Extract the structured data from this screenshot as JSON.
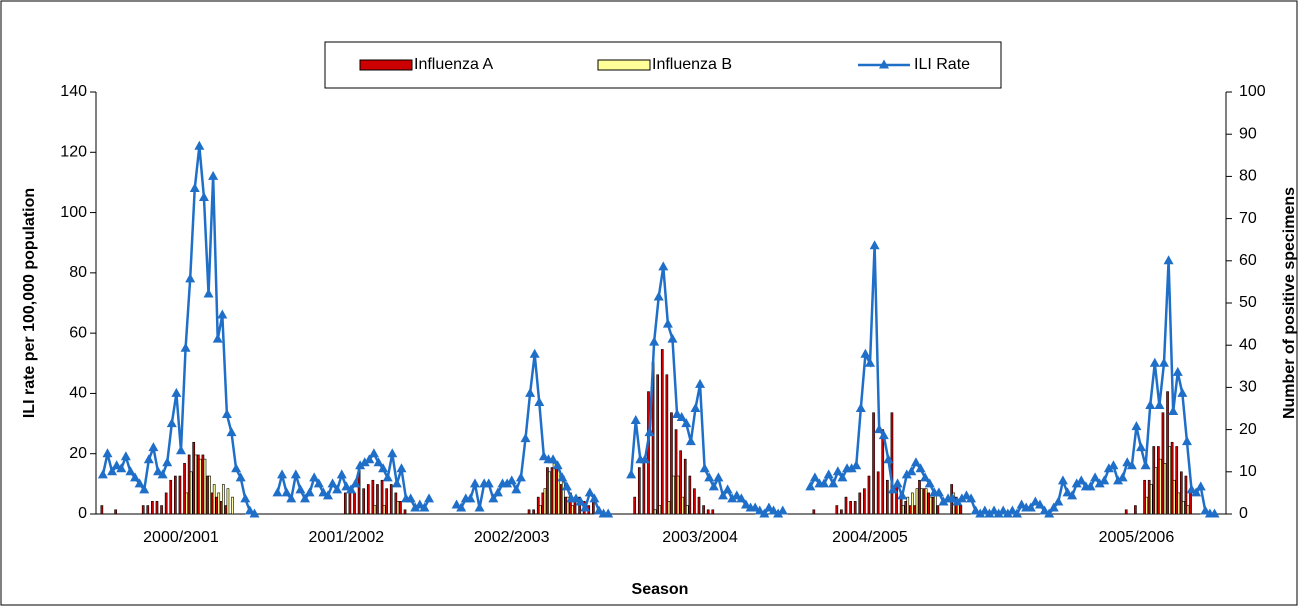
{
  "chart_data": {
    "type": "combo",
    "x_label": "Season",
    "y_label": "ILI rate per 100,000 population",
    "y2_label": "Number of positive specimens",
    "ylim": [
      0,
      140
    ],
    "yticks": [
      0,
      20,
      40,
      60,
      80,
      100,
      120,
      140
    ],
    "y2lim": [
      0,
      100
    ],
    "y2ticks": [
      0,
      10,
      20,
      30,
      40,
      50,
      60,
      70,
      80,
      90,
      100
    ],
    "legend": "top",
    "categories": [
      null,
      null,
      null,
      null,
      null,
      null,
      null,
      null,
      null,
      null,
      null,
      null,
      null,
      null,
      null,
      null,
      null,
      null,
      "2000/2001",
      null,
      null,
      null,
      null,
      null,
      null,
      null,
      null,
      null,
      null,
      null,
      null,
      null,
      null,
      null,
      null,
      null,
      null,
      null,
      null,
      null,
      null,
      null,
      null,
      null,
      null,
      null,
      null,
      null,
      null,
      null,
      null,
      null,
      null,
      null,
      "2001/2002",
      null,
      null,
      null,
      null,
      null,
      null,
      null,
      null,
      null,
      null,
      null,
      null,
      null,
      null,
      null,
      null,
      null,
      null,
      null,
      null,
      null,
      null,
      null,
      null,
      null,
      null,
      null,
      null,
      null,
      null,
      null,
      null,
      null,
      null,
      null,
      "2002/2003",
      null,
      null,
      null,
      null,
      null,
      null,
      null,
      null,
      null,
      null,
      null,
      null,
      null,
      null,
      null,
      null,
      null,
      null,
      null,
      null,
      null,
      null,
      null,
      null,
      null,
      null,
      null,
      null,
      null,
      null,
      null,
      null,
      null,
      null,
      null,
      null,
      null,
      null,
      null,
      null,
      "2003/2004",
      null,
      null,
      null,
      null,
      null,
      null,
      null,
      null,
      null,
      null,
      null,
      null,
      null,
      null,
      null,
      null,
      null,
      null,
      null,
      null,
      null,
      null,
      null,
      null,
      null,
      null,
      null,
      null,
      null,
      null,
      null,
      null,
      null,
      null,
      null,
      null,
      "2004/2005",
      null,
      null,
      null,
      null,
      null,
      null,
      null,
      null,
      null,
      null,
      null,
      null,
      null,
      null,
      null,
      null,
      null,
      null,
      null,
      null,
      null,
      null,
      null,
      null,
      null,
      null,
      null,
      null,
      null,
      null,
      null,
      null,
      null,
      null,
      null,
      null,
      null,
      null,
      null,
      null,
      null,
      null,
      null,
      null,
      null,
      null,
      null,
      null,
      null,
      null,
      null,
      null,
      null,
      null,
      null,
      null,
      null,
      "2005/2006",
      null,
      null,
      null,
      null,
      null,
      null,
      null,
      null,
      null,
      null,
      null,
      null,
      null,
      null,
      null,
      null,
      null,
      null,
      null
    ],
    "series": [
      {
        "name": "Influenza A",
        "type": "bar",
        "axis": "y2",
        "color": "#cc0000",
        "values": [
          0,
          2,
          0,
          0,
          1,
          0,
          0,
          0,
          0,
          0,
          2,
          2,
          3,
          3,
          2,
          5,
          8,
          9,
          9,
          12,
          14,
          17,
          14,
          14,
          9,
          5,
          4,
          3,
          2,
          0,
          0,
          0,
          0,
          0,
          0,
          0,
          0,
          0,
          0,
          0,
          0,
          0,
          0,
          0,
          0,
          0,
          0,
          0,
          0,
          0,
          0,
          0,
          0,
          0,
          5,
          6,
          5,
          11,
          6,
          7,
          8,
          7,
          8,
          6,
          7,
          5,
          3,
          1,
          0,
          0,
          0,
          0,
          0,
          0,
          0,
          0,
          0,
          0,
          0,
          0,
          0,
          0,
          0,
          0,
          0,
          0,
          0,
          0,
          0,
          0,
          0,
          0,
          0,
          0,
          1,
          1,
          4,
          5,
          11,
          11,
          11,
          7,
          4,
          5,
          3,
          4,
          3,
          2,
          3,
          1,
          0,
          0,
          0,
          0,
          0,
          0,
          0,
          4,
          11,
          13,
          29,
          36,
          33,
          39,
          33,
          24,
          20,
          15,
          13,
          9,
          6,
          4,
          2,
          1,
          1,
          0,
          0,
          0,
          0,
          0,
          0,
          0,
          0,
          0,
          0,
          0,
          0,
          0,
          0,
          0,
          0,
          0,
          0,
          0,
          0,
          0,
          1,
          0,
          0,
          0,
          0,
          2,
          1,
          4,
          3,
          3,
          5,
          6,
          9,
          24,
          10,
          20,
          8,
          24,
          7,
          5,
          3,
          2,
          2,
          8,
          6,
          5,
          4,
          2,
          0,
          0,
          7,
          4,
          2,
          0,
          0,
          0,
          0,
          0,
          0,
          0,
          0,
          0,
          0,
          0,
          0,
          0,
          0,
          0,
          0,
          0,
          0,
          0,
          0,
          0,
          0,
          0,
          0,
          0,
          0,
          0,
          0,
          0,
          0,
          0,
          0,
          0,
          0,
          0,
          1,
          0,
          2,
          0,
          8,
          8,
          16,
          16,
          24,
          29,
          17,
          16,
          10,
          9,
          5,
          0,
          0,
          0,
          0,
          0,
          0,
          0
        ]
      },
      {
        "name": "Influenza B",
        "type": "bar",
        "axis": "y2",
        "color": "#ffff99",
        "values": [
          0,
          0,
          0,
          0,
          0,
          0,
          0,
          0,
          0,
          0,
          0,
          0,
          0,
          0,
          0,
          0,
          0,
          0,
          0,
          5,
          10,
          14,
          13,
          13,
          9,
          7,
          5,
          7,
          6,
          4,
          0,
          0,
          0,
          0,
          0,
          0,
          0,
          0,
          0,
          0,
          0,
          0,
          0,
          0,
          0,
          0,
          0,
          0,
          0,
          0,
          0,
          0,
          0,
          0,
          0,
          0,
          0,
          0,
          0,
          0,
          2,
          0,
          2,
          0,
          0,
          3,
          0,
          0,
          0,
          0,
          0,
          0,
          0,
          0,
          0,
          0,
          0,
          0,
          0,
          0,
          0,
          0,
          0,
          0,
          0,
          0,
          0,
          0,
          0,
          0,
          0,
          0,
          0,
          0,
          0,
          0,
          2,
          6,
          10,
          12,
          11,
          9,
          4,
          2,
          0,
          0,
          0,
          0,
          0,
          0,
          0,
          0,
          0,
          0,
          0,
          0,
          0,
          0,
          0,
          0,
          0,
          1,
          2,
          0,
          3,
          9,
          9,
          4,
          2,
          0,
          0,
          0,
          0,
          0,
          0,
          0,
          0,
          0,
          0,
          0,
          0,
          0,
          0,
          0,
          0,
          0,
          0,
          0,
          0,
          0,
          0,
          0,
          0,
          0,
          0,
          0,
          0,
          0,
          0,
          0,
          0,
          0,
          0,
          0,
          0,
          0,
          0,
          0,
          0,
          0,
          0,
          0,
          0,
          0,
          0,
          2,
          4,
          5,
          6,
          6,
          6,
          4,
          5,
          0,
          0,
          0,
          5,
          3,
          0,
          0,
          0,
          0,
          0,
          0,
          0,
          0,
          0,
          0,
          0,
          0,
          0,
          0,
          0,
          0,
          0,
          0,
          0,
          0,
          0,
          0,
          0,
          0,
          0,
          0,
          0,
          0,
          0,
          0,
          0,
          0,
          0,
          0,
          0,
          0,
          0,
          0,
          0,
          0,
          4,
          7,
          11,
          13,
          12,
          16,
          8,
          5,
          3,
          2,
          0,
          0,
          0,
          0,
          0,
          0,
          0,
          0
        ]
      },
      {
        "name": "ILI Rate",
        "type": "line",
        "color": "#1f6fc8",
        "values": [
          null,
          13,
          20,
          14,
          16,
          15,
          19,
          14,
          12,
          10,
          8,
          18,
          22,
          14,
          13,
          17,
          30,
          40,
          21,
          55,
          78,
          108,
          122,
          105,
          73,
          112,
          58,
          66,
          33,
          27,
          15,
          12,
          5,
          1,
          0,
          null,
          null,
          null,
          null,
          7,
          13,
          7,
          5,
          13,
          8,
          5,
          7,
          12,
          10,
          7,
          6,
          10,
          8,
          13,
          9,
          8,
          10,
          16,
          17,
          18,
          20,
          17,
          15,
          12,
          20,
          10,
          15,
          5,
          5,
          2,
          3,
          2,
          5,
          null,
          null,
          null,
          null,
          null,
          3,
          2,
          5,
          5,
          10,
          2,
          10,
          10,
          5,
          7,
          10,
          10,
          11,
          8,
          12,
          25,
          40,
          53,
          37,
          19,
          18,
          18,
          16,
          12,
          9,
          5,
          5,
          4,
          2,
          7,
          5,
          1,
          0,
          0,
          null,
          null,
          null,
          null,
          13,
          31,
          18,
          18,
          27,
          57,
          72,
          82,
          63,
          58,
          33,
          32,
          30,
          24,
          35,
          43,
          15,
          12,
          9,
          12,
          6,
          8,
          5,
          6,
          5,
          3,
          2,
          2,
          1,
          0,
          2,
          1,
          0,
          1,
          null,
          null,
          null,
          null,
          null,
          9,
          12,
          10,
          10,
          13,
          10,
          14,
          12,
          15,
          15,
          16,
          35,
          53,
          50,
          89,
          28,
          26,
          18,
          8,
          10,
          6,
          13,
          14,
          17,
          15,
          12,
          10,
          7,
          7,
          4,
          5,
          5,
          4,
          5,
          6,
          5,
          1,
          0,
          1,
          0,
          1,
          0,
          1,
          0,
          1,
          0,
          3,
          2,
          2,
          4,
          3,
          1,
          0,
          2,
          4,
          11,
          7,
          6,
          10,
          11,
          9,
          9,
          12,
          10,
          11,
          15,
          16,
          11,
          12,
          17,
          16,
          29,
          22,
          16,
          36,
          50,
          36,
          50,
          84,
          34,
          47,
          40,
          24,
          8,
          7,
          9,
          1,
          0,
          0,
          null,
          null
        ]
      }
    ]
  }
}
